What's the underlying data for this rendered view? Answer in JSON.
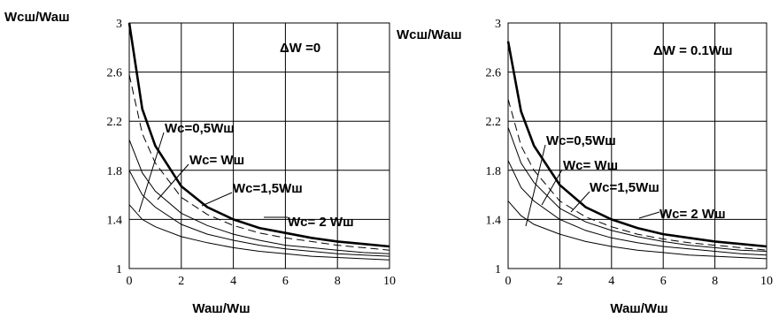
{
  "chart_data": [
    {
      "type": "line",
      "ylabel": "Wcш/Waш",
      "xlabel": "Waш/Wш",
      "xlim": [
        0,
        10
      ],
      "ylim": [
        1,
        3
      ],
      "xticks": [
        "0",
        "2",
        "4",
        "6",
        "8",
        "10"
      ],
      "yticks": [
        "1",
        "1.4",
        "1.8",
        "2.2",
        "2.6",
        "3"
      ],
      "grid": true,
      "annotation": "ΔW   =0",
      "x": [
        0,
        0.5,
        1,
        2,
        3,
        4,
        5,
        6,
        7,
        8,
        9,
        10
      ],
      "series": [
        {
          "values": [
            3.0,
            2.3,
            2.0,
            1.67,
            1.5,
            1.4,
            1.33,
            1.29,
            1.25,
            1.22,
            1.2,
            1.18
          ],
          "style": "thick"
        },
        {
          "values": [
            2.58,
            2.1,
            1.86,
            1.58,
            1.44,
            1.35,
            1.29,
            1.25,
            1.22,
            1.19,
            1.17,
            1.15
          ],
          "style": "dashed"
        },
        {
          "values": [
            2.05,
            1.78,
            1.63,
            1.45,
            1.35,
            1.28,
            1.23,
            1.19,
            1.17,
            1.15,
            1.13,
            1.12
          ],
          "style": "thin"
        },
        {
          "values": [
            1.8,
            1.6,
            1.5,
            1.36,
            1.28,
            1.23,
            1.19,
            1.16,
            1.14,
            1.12,
            1.11,
            1.1
          ],
          "style": "thin"
        },
        {
          "values": [
            1.52,
            1.4,
            1.34,
            1.26,
            1.21,
            1.17,
            1.14,
            1.12,
            1.1,
            1.09,
            1.08,
            1.07
          ],
          "style": "thin"
        }
      ],
      "labels": [
        "Wc=0,5Wш",
        "Wc= Wш",
        "Wc=1,5Wш",
        "Wc= 2 Wш"
      ]
    },
    {
      "type": "line",
      "ylabel": "Wcш/Waш",
      "xlabel": "Waш/Wш",
      "xlim": [
        0,
        10
      ],
      "ylim": [
        1,
        3
      ],
      "xticks": [
        "0",
        "2",
        "4",
        "6",
        "8",
        "10"
      ],
      "yticks": [
        "1",
        "1.4",
        "1.8",
        "2.2",
        "2.6",
        "3"
      ],
      "grid": true,
      "annotation": "ΔW = 0.1Wш",
      "x": [
        0,
        0.5,
        1,
        2,
        3,
        4,
        5,
        6,
        7,
        8,
        9,
        10
      ],
      "series": [
        {
          "values": [
            2.85,
            2.28,
            2.0,
            1.68,
            1.5,
            1.4,
            1.33,
            1.28,
            1.25,
            1.22,
            1.2,
            1.18
          ],
          "style": "thick"
        },
        {
          "values": [
            2.38,
            2.0,
            1.8,
            1.55,
            1.42,
            1.34,
            1.28,
            1.24,
            1.21,
            1.19,
            1.17,
            1.15
          ],
          "style": "dashed"
        },
        {
          "values": [
            2.15,
            1.86,
            1.7,
            1.49,
            1.38,
            1.31,
            1.26,
            1.22,
            1.19,
            1.17,
            1.15,
            1.14
          ],
          "style": "thin"
        },
        {
          "values": [
            1.88,
            1.66,
            1.55,
            1.4,
            1.31,
            1.25,
            1.21,
            1.18,
            1.16,
            1.14,
            1.12,
            1.11
          ],
          "style": "thin"
        },
        {
          "values": [
            1.55,
            1.43,
            1.36,
            1.28,
            1.22,
            1.18,
            1.15,
            1.13,
            1.11,
            1.1,
            1.09,
            1.08
          ],
          "style": "thin"
        }
      ],
      "labels": [
        "Wc=0,5Wш",
        "Wc= Wш",
        "Wc=1,5Wш",
        "Wc= 2 Wш"
      ]
    }
  ]
}
